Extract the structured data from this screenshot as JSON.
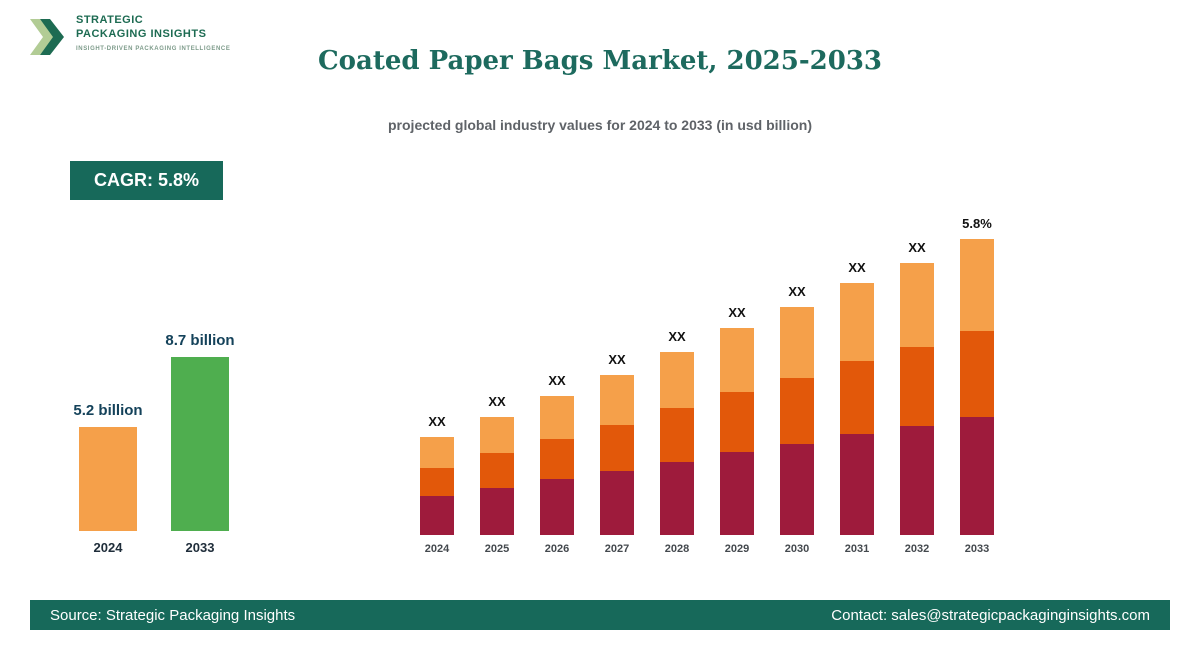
{
  "logo": {
    "line1": "STRATEGIC",
    "line2": "PACKAGING INSIGHTS",
    "tagline": "INSIGHT-DRIVEN PACKAGING INTELLIGENCE"
  },
  "header": {
    "title": "Coated Paper Bags Market, 2025-2033",
    "subtitle": "projected global industry values for 2024 to 2033 (in usd billion)"
  },
  "cagr_badge": {
    "label": "CAGR: 5.8%"
  },
  "summary_chart": {
    "bars": [
      {
        "year": "2024",
        "label": "5.2 billion",
        "value": 5.2,
        "color": "#f5a04a"
      },
      {
        "year": "2033",
        "label": "8.7 billion",
        "value": 8.7,
        "color": "#4fae4f"
      }
    ],
    "unit": "usd billion"
  },
  "chart_data": {
    "type": "bar",
    "stacked": true,
    "title": "Coated Paper Bags Market, 2025-2033",
    "categories": [
      "2024",
      "2025",
      "2026",
      "2027",
      "2028",
      "2029",
      "2030",
      "2031",
      "2032",
      "2033"
    ],
    "series": [
      {
        "name": "bottom",
        "color": "#9e1b3c",
        "values": [
          13.2,
          16.0,
          18.8,
          21.6,
          24.8,
          28.0,
          30.8,
          34.0,
          36.8,
          40.0
        ]
      },
      {
        "name": "middle",
        "color": "#e2580a",
        "values": [
          9.6,
          11.6,
          13.6,
          15.7,
          18.0,
          20.3,
          22.3,
          24.7,
          26.7,
          29.0
        ]
      },
      {
        "name": "top",
        "color": "#f5a04a",
        "values": [
          10.2,
          12.4,
          14.6,
          16.7,
          19.2,
          21.7,
          23.9,
          26.4,
          28.5,
          31.0
        ]
      }
    ],
    "bar_labels": [
      "XX",
      "XX",
      "XX",
      "XX",
      "XX",
      "XX",
      "XX",
      "XX",
      "XX",
      "5.8%"
    ],
    "ylim": [
      0,
      110
    ],
    "legend": "none",
    "grid": false
  },
  "footer": {
    "source": "Source: Strategic Packaging Insights",
    "contact": "Contact: sales@strategicpackaginginsights.com"
  },
  "colors": {
    "accent_teal": "#17695a",
    "title_teal": "#1d6a5e",
    "maroon": "#9e1b3c",
    "orange_red": "#e2580a",
    "light_orange": "#f5a04a",
    "green": "#4fae4f"
  }
}
